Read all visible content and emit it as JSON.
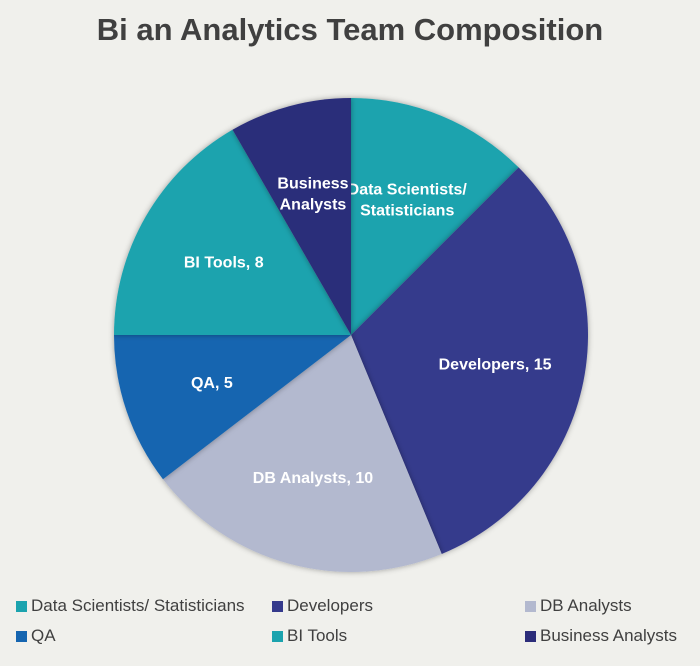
{
  "chart_data": {
    "type": "pie",
    "title": "Bi an Analytics Team Composition",
    "start_angle_deg": 0,
    "direction": "clockwise",
    "slices": [
      {
        "name": "Data Scientists/ Statisticians",
        "value": 6,
        "label_lines": [
          "Data Scientists/",
          "Statisticians"
        ],
        "color": "#1ba3ae"
      },
      {
        "name": "Developers",
        "value": 15,
        "label_lines": [
          "Developers, 15"
        ],
        "color": "#353a8c"
      },
      {
        "name": "DB Analysts",
        "value": 10,
        "label_lines": [
          "DB Analysts, 10"
        ],
        "color": "#b3b9cf"
      },
      {
        "name": "QA",
        "value": 5,
        "label_lines": [
          "QA, 5"
        ],
        "color": "#1565b0"
      },
      {
        "name": "BI Tools",
        "value": 8,
        "label_lines": [
          "BI Tools, 8"
        ],
        "color": "#1ba3ae"
      },
      {
        "name": "Business Analysts",
        "value": 4,
        "label_lines": [
          "Business",
          "Analysts"
        ],
        "color": "#2c2d7a"
      }
    ],
    "legend_position": "bottom"
  }
}
